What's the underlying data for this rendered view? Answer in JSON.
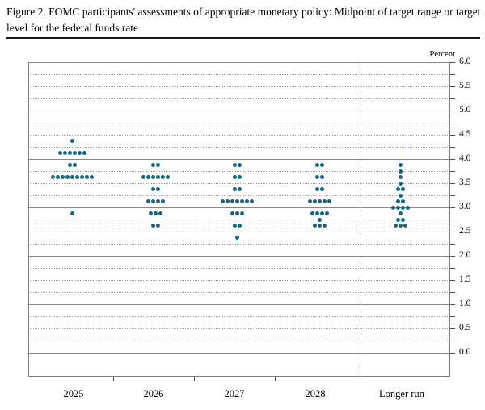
{
  "header": {
    "title": "Figure 2. FOMC participants' assessments of appropriate monetary policy: Midpoint of target range or target level for the federal funds rate"
  },
  "chart_data": {
    "type": "scatter",
    "subtype": "fomc-dot-plot",
    "title": "Figure 2. FOMC participants' assessments of appropriate monetary policy: Midpoint of target range or target level for the federal funds rate",
    "ylabel": "Percent",
    "ylim": [
      0.0,
      6.0
    ],
    "ytick_labels": [
      "6.0",
      "5.5",
      "5.0",
      "4.5",
      "4.0",
      "3.5",
      "3.0",
      "2.5",
      "2.0",
      "1.5",
      "1.0",
      "0.5",
      "0.0"
    ],
    "ytick_values": [
      6.0,
      5.5,
      5.0,
      4.5,
      4.0,
      3.5,
      3.0,
      2.5,
      2.0,
      1.5,
      1.0,
      0.5,
      0.0
    ],
    "ygrid_minor_step": 0.25,
    "grid": "horizontal, solid at integers, dotted at quarter-points",
    "legend_position": "none",
    "dot_color": "#176684",
    "categories": [
      "2025",
      "2026",
      "2027",
      "2028",
      "Longer run"
    ],
    "series": [
      {
        "name": "2025",
        "dots": [
          {
            "value": 4.375,
            "count": 1
          },
          {
            "value": 4.125,
            "count": 6
          },
          {
            "value": 3.875,
            "count": 2
          },
          {
            "value": 3.625,
            "count": 9
          },
          {
            "value": 2.875,
            "count": 1
          }
        ]
      },
      {
        "name": "2026",
        "dots": [
          {
            "value": 3.875,
            "count": 2
          },
          {
            "value": 3.625,
            "count": 6
          },
          {
            "value": 3.375,
            "count": 2
          },
          {
            "value": 3.125,
            "count": 4
          },
          {
            "value": 2.875,
            "count": 3
          },
          {
            "value": 2.625,
            "count": 2
          }
        ]
      },
      {
        "name": "2027",
        "dots": [
          {
            "value": 3.875,
            "count": 2
          },
          {
            "value": 3.625,
            "count": 2
          },
          {
            "value": 3.375,
            "count": 2
          },
          {
            "value": 3.125,
            "count": 7
          },
          {
            "value": 2.875,
            "count": 3
          },
          {
            "value": 2.625,
            "count": 2
          },
          {
            "value": 2.375,
            "count": 1
          }
        ]
      },
      {
        "name": "2028",
        "dots": [
          {
            "value": 3.875,
            "count": 2
          },
          {
            "value": 3.625,
            "count": 2
          },
          {
            "value": 3.375,
            "count": 2
          },
          {
            "value": 3.125,
            "count": 5
          },
          {
            "value": 2.875,
            "count": 4
          },
          {
            "value": 2.75,
            "count": 1
          },
          {
            "value": 2.625,
            "count": 3
          }
        ]
      },
      {
        "name": "Longer run",
        "dots": [
          {
            "value": 3.875,
            "count": 1
          },
          {
            "value": 3.75,
            "count": 1
          },
          {
            "value": 3.625,
            "count": 1
          },
          {
            "value": 3.5,
            "count": 1
          },
          {
            "value": 3.375,
            "count": 2
          },
          {
            "value": 3.25,
            "count": 1
          },
          {
            "value": 3.125,
            "count": 2
          },
          {
            "value": 3.0,
            "count": 4
          },
          {
            "value": 2.875,
            "count": 1
          },
          {
            "value": 2.75,
            "count": 2
          },
          {
            "value": 2.625,
            "count": 3
          }
        ]
      }
    ]
  }
}
